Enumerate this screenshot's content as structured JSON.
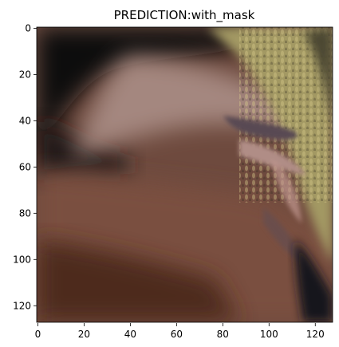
{
  "title": "PREDICTION:with_mask",
  "image": {
    "subject": "blurry close-up of a face (forehead, eyebrow and cheek) against a dark top-left background and a yellow-olive blurred background at top-right",
    "pixel_extent": [
      128,
      128
    ],
    "palette": {
      "dark_bg": "#0d0b0c",
      "skin_light": "#a0847e",
      "skin_mid": "#7b5446",
      "skin_dark": "#4a2a20",
      "bg_yellow": "#a89e62",
      "bg_olive": "#5a553c",
      "eyebrow": "#5e4e56",
      "dark_corner": "#14161e"
    }
  },
  "axes": {
    "x_ticks": [
      "0",
      "20",
      "40",
      "60",
      "80",
      "100",
      "120"
    ],
    "y_ticks": [
      "0",
      "20",
      "40",
      "60",
      "80",
      "100",
      "120"
    ],
    "spine_color": "#000000"
  }
}
